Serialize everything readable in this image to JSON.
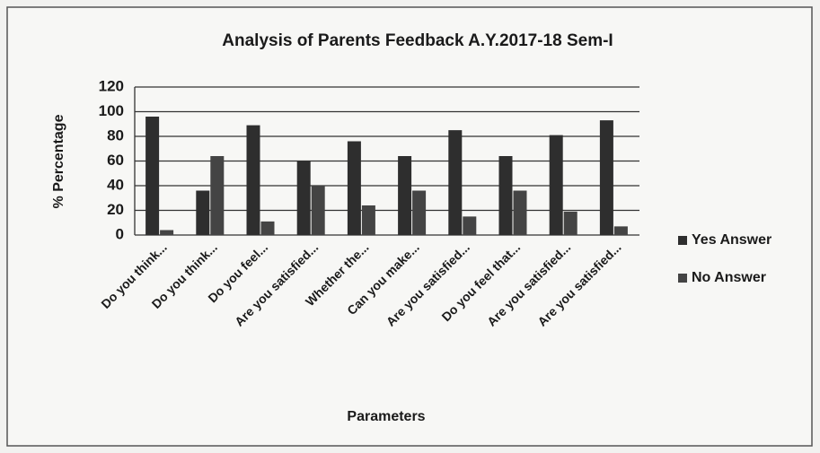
{
  "chart_data": {
    "type": "bar",
    "title": "Analysis of Parents Feedback A.Y.2017-18 Sem-I",
    "x_label": "Parameters",
    "y_label": "% Percentage",
    "categories": [
      "Do you think...",
      "Do you think...",
      "Do you feel...",
      "Are you satisfied...",
      "Whether the...",
      "Can you make...",
      "Are you satisfied...",
      "Do you feel that...",
      "Are you satisfied...",
      "Are you satisfied..."
    ],
    "series": [
      {
        "name": "Yes Answer",
        "color": "#2e2e2e",
        "values": [
          96,
          36,
          89,
          60,
          76,
          64,
          85,
          64,
          81,
          93
        ]
      },
      {
        "name": "No Answer",
        "color": "#444444",
        "values": [
          4,
          64,
          11,
          40,
          24,
          36,
          15,
          36,
          19,
          7
        ]
      }
    ],
    "ylim": [
      0,
      120
    ],
    "yticks": [
      0,
      20,
      40,
      60,
      80,
      100,
      120
    ],
    "grid": true,
    "legend": "right"
  }
}
